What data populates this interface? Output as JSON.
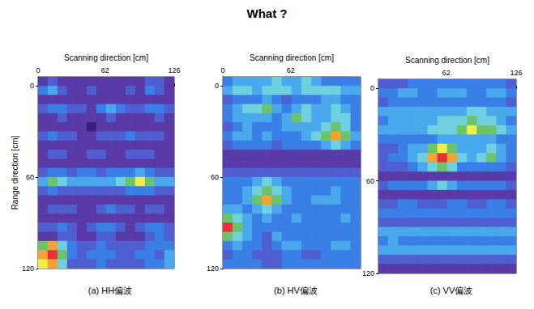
{
  "title": "What ?",
  "chart_data": [
    {
      "type": "heatmap",
      "caption": "(a) HH偏波",
      "xlabel": "Scanning direction [cm]",
      "ylabel": "Range direction [cm]",
      "xlim": [
        0,
        126
      ],
      "ylim": [
        -6,
        120
      ],
      "xticks": [
        0,
        62,
        126
      ],
      "yticks": [
        0,
        60,
        120
      ],
      "x_bins": [
        0,
        9,
        18,
        27,
        36,
        45,
        54,
        63,
        72,
        81,
        90,
        99,
        108,
        117,
        126
      ],
      "y_bins": [
        -6,
        0,
        6,
        12,
        18,
        24,
        30,
        36,
        42,
        48,
        54,
        60,
        66,
        72,
        78,
        84,
        90,
        96,
        102,
        108,
        114,
        120
      ],
      "color_range": [
        0,
        9
      ],
      "cells": [
        [
          1,
          2,
          1,
          1,
          1,
          1,
          1,
          1,
          1,
          1,
          1,
          2,
          2,
          1
        ],
        [
          3,
          4,
          2,
          1,
          1,
          2,
          1,
          1,
          1,
          2,
          1,
          3,
          2,
          1
        ],
        [
          1,
          1,
          1,
          1,
          1,
          1,
          1,
          1,
          1,
          1,
          1,
          1,
          1,
          1
        ],
        [
          2,
          3,
          3,
          2,
          2,
          1,
          3,
          4,
          3,
          2,
          2,
          3,
          3,
          2
        ],
        [
          1,
          1,
          2,
          1,
          1,
          1,
          1,
          2,
          1,
          1,
          1,
          1,
          2,
          1
        ],
        [
          1,
          1,
          1,
          1,
          1,
          0,
          1,
          1,
          1,
          1,
          1,
          1,
          1,
          1
        ],
        [
          2,
          3,
          2,
          2,
          1,
          1,
          2,
          2,
          2,
          3,
          2,
          2,
          2,
          1
        ],
        [
          1,
          1,
          1,
          1,
          1,
          1,
          1,
          1,
          1,
          1,
          1,
          1,
          1,
          1
        ],
        [
          1,
          2,
          2,
          1,
          1,
          2,
          2,
          1,
          1,
          2,
          2,
          2,
          1,
          1
        ],
        [
          1,
          1,
          1,
          1,
          1,
          1,
          1,
          1,
          1,
          1,
          1,
          1,
          1,
          1
        ],
        [
          2,
          3,
          3,
          2,
          3,
          3,
          2,
          3,
          3,
          3,
          4,
          3,
          2,
          2
        ],
        [
          4,
          6,
          5,
          4,
          4,
          4,
          4,
          4,
          5,
          6,
          7,
          6,
          4,
          4
        ],
        [
          2,
          3,
          2,
          2,
          2,
          2,
          2,
          2,
          2,
          3,
          3,
          3,
          2,
          2
        ],
        [
          1,
          1,
          1,
          1,
          1,
          1,
          1,
          1,
          1,
          1,
          1,
          1,
          1,
          1
        ],
        [
          1,
          2,
          2,
          2,
          1,
          1,
          2,
          3,
          2,
          2,
          1,
          2,
          2,
          1
        ],
        [
          1,
          1,
          1,
          1,
          1,
          1,
          1,
          1,
          1,
          1,
          1,
          1,
          1,
          1
        ],
        [
          2,
          2,
          3,
          2,
          1,
          2,
          3,
          3,
          2,
          1,
          2,
          3,
          3,
          2
        ],
        [
          1,
          1,
          2,
          2,
          1,
          1,
          2,
          2,
          1,
          1,
          1,
          2,
          3,
          2
        ],
        [
          6,
          8,
          5,
          3,
          2,
          2,
          3,
          2,
          2,
          2,
          2,
          3,
          3,
          3
        ],
        [
          8,
          9,
          6,
          3,
          2,
          3,
          3,
          3,
          2,
          2,
          3,
          3,
          2,
          4
        ],
        [
          7,
          8,
          5,
          2,
          2,
          2,
          3,
          2,
          2,
          2,
          2,
          3,
          3,
          4
        ]
      ]
    },
    {
      "type": "heatmap",
      "caption": "(b) HV偏波",
      "xlabel": "Scanning direction [cm]",
      "xlim": [
        0,
        126
      ],
      "ylim": [
        -6,
        120
      ],
      "xticks": [
        0,
        62
      ],
      "yticks": [
        0,
        60,
        120
      ],
      "x_bins": [
        0,
        9,
        18,
        27,
        36,
        45,
        54,
        63,
        72,
        81,
        90,
        99,
        108,
        117,
        126
      ],
      "y_bins": [
        -6,
        0,
        6,
        12,
        18,
        24,
        30,
        36,
        42,
        48,
        54,
        60,
        66,
        72,
        78,
        84,
        90,
        96,
        102,
        108,
        114,
        120
      ],
      "color_range": [
        0,
        9
      ],
      "cells": [
        [
          3,
          4,
          4,
          4,
          4,
          5,
          4,
          4,
          5,
          4,
          3,
          3,
          3,
          3
        ],
        [
          4,
          5,
          5,
          4,
          5,
          5,
          5,
          4,
          5,
          5,
          5,
          5,
          4,
          4
        ],
        [
          2,
          3,
          3,
          3,
          4,
          3,
          2,
          3,
          3,
          3,
          4,
          4,
          3,
          3
        ],
        [
          3,
          4,
          5,
          5,
          6,
          4,
          3,
          4,
          5,
          4,
          4,
          5,
          4,
          3
        ],
        [
          3,
          4,
          4,
          4,
          4,
          3,
          4,
          6,
          5,
          4,
          4,
          5,
          5,
          3
        ],
        [
          2,
          3,
          4,
          3,
          3,
          3,
          4,
          4,
          4,
          4,
          5,
          6,
          5,
          3
        ],
        [
          3,
          4,
          4,
          3,
          4,
          3,
          3,
          3,
          4,
          5,
          6,
          8,
          6,
          4
        ],
        [
          2,
          3,
          3,
          3,
          3,
          2,
          3,
          3,
          3,
          3,
          4,
          5,
          4,
          3
        ],
        [
          1,
          1,
          1,
          1,
          1,
          1,
          1,
          1,
          1,
          1,
          1,
          1,
          1,
          1
        ],
        [
          1,
          1,
          1,
          1,
          1,
          1,
          1,
          1,
          1,
          1,
          1,
          1,
          1,
          1
        ],
        [
          2,
          2,
          2,
          2,
          2,
          2,
          2,
          2,
          2,
          2,
          2,
          2,
          2,
          2
        ],
        [
          3,
          3,
          3,
          4,
          5,
          4,
          3,
          3,
          3,
          3,
          3,
          3,
          3,
          3
        ],
        [
          3,
          3,
          4,
          5,
          6,
          5,
          4,
          3,
          3,
          3,
          3,
          4,
          3,
          3
        ],
        [
          3,
          3,
          4,
          6,
          8,
          6,
          4,
          3,
          3,
          4,
          4,
          4,
          3,
          3
        ],
        [
          4,
          4,
          3,
          4,
          5,
          4,
          3,
          3,
          3,
          3,
          3,
          3,
          3,
          3
        ],
        [
          6,
          5,
          4,
          3,
          4,
          3,
          3,
          4,
          3,
          3,
          3,
          3,
          4,
          3
        ],
        [
          9,
          6,
          4,
          3,
          3,
          3,
          3,
          3,
          3,
          3,
          3,
          3,
          3,
          3
        ],
        [
          6,
          5,
          4,
          3,
          2,
          4,
          3,
          3,
          3,
          3,
          3,
          3,
          3,
          3
        ],
        [
          3,
          4,
          3,
          3,
          2,
          3,
          4,
          4,
          3,
          3,
          3,
          4,
          4,
          3
        ],
        [
          2,
          3,
          3,
          2,
          2,
          2,
          3,
          3,
          2,
          2,
          3,
          3,
          3,
          3
        ],
        [
          3,
          3,
          3,
          3,
          2,
          2,
          3,
          3,
          3,
          3,
          3,
          3,
          3,
          3
        ]
      ]
    },
    {
      "type": "heatmap",
      "caption": "(c) VV偏波",
      "xlabel": "Scanning direction [cm]",
      "xlim": [
        0,
        126
      ],
      "ylim": [
        -6,
        120
      ],
      "xticks": [
        62,
        126
      ],
      "yticks": [
        0,
        60,
        120
      ],
      "x_bins": [
        0,
        9,
        18,
        27,
        36,
        45,
        54,
        63,
        72,
        81,
        90,
        99,
        108,
        117,
        126
      ],
      "y_bins": [
        -6,
        0,
        6,
        12,
        18,
        24,
        30,
        36,
        42,
        48,
        54,
        60,
        66,
        72,
        78,
        84,
        90,
        96,
        102,
        108,
        114,
        120
      ],
      "color_range": [
        0,
        9
      ],
      "cells": [
        [
          2,
          2,
          2,
          3,
          3,
          3,
          3,
          3,
          3,
          3,
          3,
          3,
          3,
          2
        ],
        [
          3,
          3,
          4,
          4,
          3,
          3,
          4,
          4,
          4,
          3,
          3,
          4,
          4,
          3
        ],
        [
          2,
          3,
          3,
          3,
          3,
          3,
          3,
          3,
          3,
          3,
          3,
          3,
          3,
          2
        ],
        [
          4,
          4,
          4,
          4,
          4,
          4,
          4,
          4,
          4,
          5,
          5,
          4,
          4,
          4
        ],
        [
          3,
          4,
          4,
          4,
          4,
          4,
          5,
          5,
          5,
          6,
          5,
          5,
          4,
          3
        ],
        [
          4,
          4,
          4,
          4,
          4,
          5,
          5,
          5,
          6,
          7,
          6,
          6,
          5,
          4
        ],
        [
          3,
          3,
          3,
          3,
          3,
          3,
          4,
          4,
          4,
          4,
          4,
          4,
          3,
          3
        ],
        [
          2,
          2,
          3,
          4,
          4,
          6,
          7,
          6,
          4,
          4,
          4,
          5,
          4,
          3
        ],
        [
          2,
          3,
          3,
          4,
          5,
          8,
          9,
          8,
          5,
          4,
          5,
          6,
          4,
          3
        ],
        [
          2,
          2,
          2,
          3,
          4,
          5,
          6,
          5,
          3,
          3,
          3,
          3,
          3,
          2
        ],
        [
          1,
          1,
          1,
          1,
          1,
          1,
          1,
          1,
          1,
          1,
          1,
          1,
          1,
          1
        ],
        [
          2,
          3,
          3,
          3,
          3,
          4,
          5,
          4,
          3,
          3,
          3,
          3,
          3,
          2
        ],
        [
          1,
          1,
          1,
          1,
          1,
          1,
          1,
          1,
          1,
          1,
          1,
          1,
          1,
          1
        ],
        [
          2,
          2,
          3,
          3,
          2,
          2,
          2,
          3,
          3,
          2,
          2,
          3,
          3,
          2
        ],
        [
          3,
          3,
          3,
          3,
          3,
          3,
          3,
          3,
          3,
          3,
          3,
          3,
          3,
          3
        ],
        [
          2,
          2,
          2,
          2,
          2,
          2,
          2,
          2,
          2,
          2,
          2,
          2,
          2,
          2
        ],
        [
          4,
          4,
          4,
          4,
          4,
          4,
          4,
          4,
          4,
          4,
          4,
          4,
          4,
          4
        ],
        [
          3,
          4,
          3,
          3,
          3,
          3,
          3,
          3,
          3,
          3,
          3,
          3,
          3,
          3
        ],
        [
          4,
          4,
          4,
          4,
          4,
          4,
          4,
          4,
          4,
          4,
          4,
          4,
          4,
          4
        ],
        [
          2,
          2,
          2,
          2,
          2,
          2,
          2,
          2,
          2,
          2,
          2,
          2,
          2,
          2
        ],
        [
          1,
          1,
          1,
          1,
          1,
          1,
          1,
          1,
          1,
          1,
          1,
          1,
          1,
          1
        ]
      ]
    }
  ]
}
